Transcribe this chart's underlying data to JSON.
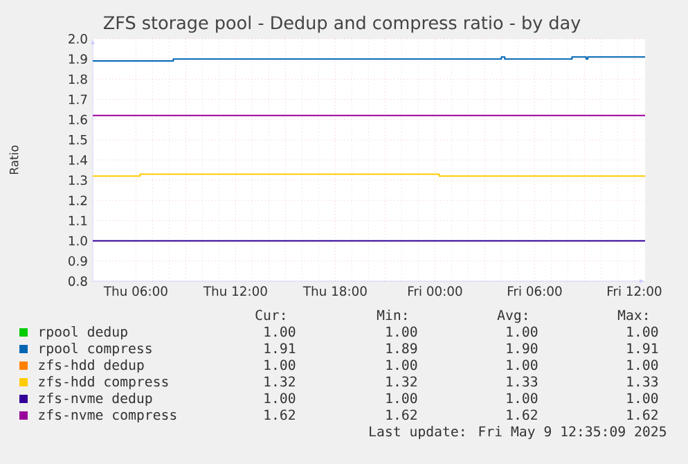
{
  "chart_data": {
    "type": "step",
    "title": "ZFS storage pool - Dedup and compress ratio - by day",
    "ylabel": "Ratio",
    "xlim": [
      "2025-05-08T03:24",
      "2025-05-09T12:39"
    ],
    "xticks": [
      {
        "value": "2025-05-08T06:00",
        "label": "Thu 06:00"
      },
      {
        "value": "2025-05-08T09:00",
        "label": null
      },
      {
        "value": "2025-05-08T12:00",
        "label": "Thu 12:00"
      },
      {
        "value": "2025-05-08T15:00",
        "label": null
      },
      {
        "value": "2025-05-08T18:00",
        "label": "Thu 18:00"
      },
      {
        "value": "2025-05-08T21:00",
        "label": null
      },
      {
        "value": "2025-05-09T00:00",
        "label": "Fri 00:00"
      },
      {
        "value": "2025-05-09T03:00",
        "label": null
      },
      {
        "value": "2025-05-09T06:00",
        "label": "Fri 06:00"
      },
      {
        "value": "2025-05-09T09:00",
        "label": null
      },
      {
        "value": "2025-05-09T12:00",
        "label": "Fri 12:00"
      }
    ],
    "ylim": [
      0.8,
      2.0
    ],
    "yticks": [
      {
        "value": 0.8,
        "label": "0.8"
      },
      {
        "value": 0.9,
        "label": "0.9"
      },
      {
        "value": 1.0,
        "label": "1.0"
      },
      {
        "value": 1.1,
        "label": "1.1"
      },
      {
        "value": 1.2,
        "label": "1.2"
      },
      {
        "value": 1.3,
        "label": "1.3"
      },
      {
        "value": 1.4,
        "label": "1.4"
      },
      {
        "value": 1.5,
        "label": "1.5"
      },
      {
        "value": 1.6,
        "label": "1.6"
      },
      {
        "value": 1.7,
        "label": "1.7"
      },
      {
        "value": 1.8,
        "label": "1.8"
      },
      {
        "value": 1.9,
        "label": "1.9"
      },
      {
        "value": 2.0,
        "label": "2.0"
      }
    ],
    "grid": true,
    "legend": "bottom",
    "series": [
      {
        "name": "rpool dedup",
        "color": "#00cc00",
        "values": [
          null
        ]
      },
      {
        "name": "rpool compress",
        "color": "#0066b3",
        "x": [
          "2025-05-08T03:24",
          "2025-05-08T08:15",
          "2025-05-09T04:00",
          "2025-05-09T04:12",
          "2025-05-09T08:15",
          "2025-05-09T09:06",
          "2025-05-09T09:12",
          "2025-05-09T12:39"
        ],
        "values": [
          1.89,
          1.9,
          1.91,
          1.9,
          1.91,
          1.9,
          1.91,
          1.91
        ]
      },
      {
        "name": "zfs-hdd dedup",
        "color": "#ff8000",
        "values": [
          null
        ]
      },
      {
        "name": "zfs-hdd compress",
        "color": "#ffcc00",
        "x": [
          "2025-05-08T03:24",
          "2025-05-08T06:15",
          "2025-05-09T00:15",
          "2025-05-09T12:39"
        ],
        "values": [
          1.32,
          1.33,
          1.32,
          1.32
        ]
      },
      {
        "name": "zfs-nvme dedup",
        "color": "#330099",
        "x": [
          "2025-05-08T03:24",
          "2025-05-09T12:39"
        ],
        "values": [
          1.0,
          1.0
        ]
      },
      {
        "name": "zfs-nvme compress",
        "color": "#990099",
        "x": [
          "2025-05-08T03:24",
          "2025-05-09T12:39"
        ],
        "values": [
          1.62,
          1.62
        ]
      }
    ],
    "annotations": [
      "Cur:",
      "Min:",
      "Avg:",
      "Max:",
      "1.00",
      "1.00",
      "1.00",
      "1.00",
      "1.91",
      "1.89",
      "1.90",
      "1.91",
      "1.00",
      "1.00",
      "1.00",
      "1.00",
      "1.32",
      "1.32",
      "1.33",
      "1.33",
      "1.00",
      "1.00",
      "1.00",
      "1.00",
      "1.62",
      "1.62",
      "1.62",
      "1.62",
      "Last update: Fri May  9 12:35:09 2025"
    ]
  }
}
